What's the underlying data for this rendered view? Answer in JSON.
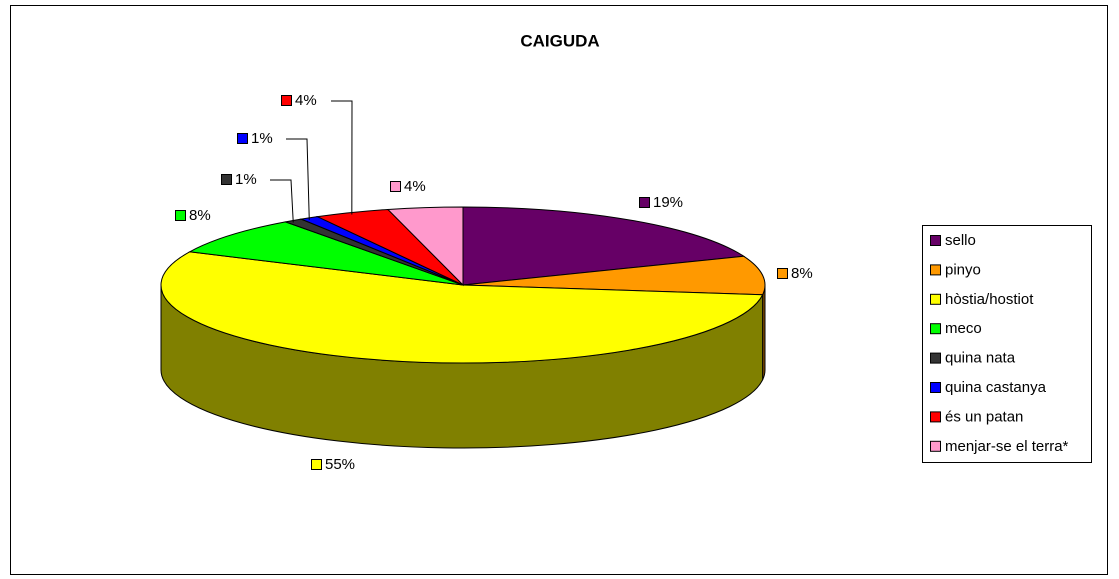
{
  "chart_data": {
    "type": "pie",
    "title": "CAIGUDA",
    "categories": [
      "sello",
      "pinyo",
      "hòstia/hostiot",
      "meco",
      "quina nata",
      "quina castanya",
      "és un patan",
      "menjar-se el terra*"
    ],
    "values": [
      19,
      8,
      55,
      8,
      1,
      1,
      4,
      4
    ],
    "value_labels": [
      "19%",
      "8%",
      "55%",
      "8%",
      "1%",
      "1%",
      "4%",
      "4%"
    ],
    "colors": [
      "#660066",
      "#ff9900",
      "#ffff00",
      "#00ff00",
      "#333333",
      "#0000ff",
      "#ff0000",
      "#ff99cc"
    ],
    "legend": "right"
  }
}
